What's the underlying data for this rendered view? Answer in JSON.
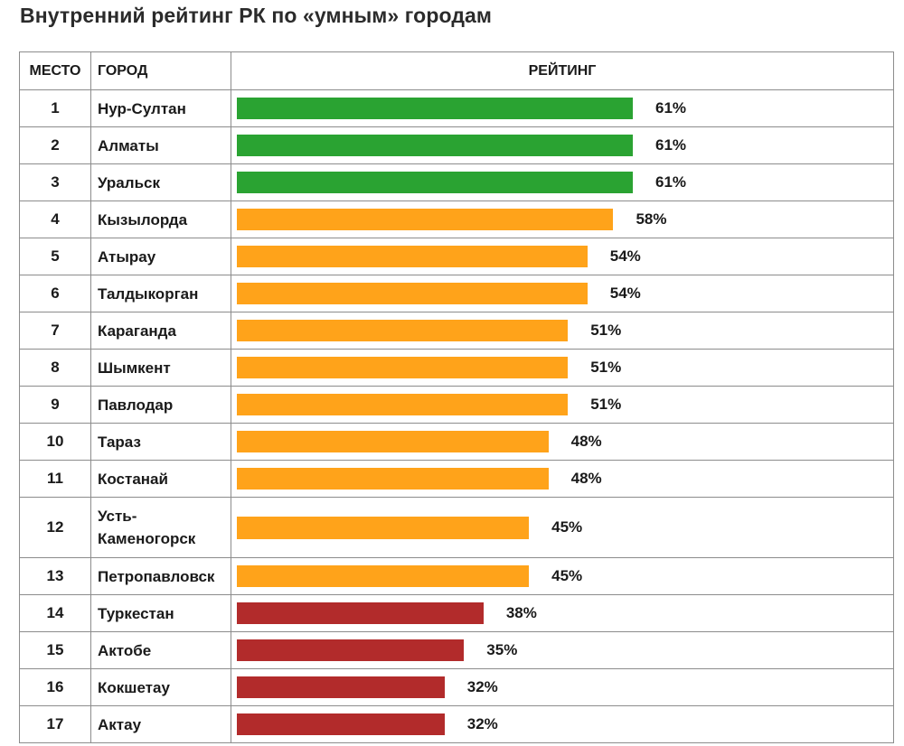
{
  "title": "Внутренний рейтинг РК по «умным» городам",
  "headers": {
    "place": "МЕСТО",
    "city": "ГОРОД",
    "rating": "РЕЙТИНГ"
  },
  "colors": {
    "high": "#2aa332",
    "mid": "#ffa31a",
    "low": "#b22b2b"
  },
  "chart_data": {
    "type": "bar",
    "orientation": "horizontal",
    "title": "Внутренний рейтинг РК по «умным» городам",
    "xlabel": "РЕЙТИНГ",
    "ylabel": "ГОРОД",
    "unit": "%",
    "xlim": [
      0,
      70
    ],
    "rows": [
      {
        "place": "1",
        "city": "Нур-Султан",
        "value": 61,
        "label": "61%",
        "level": "high"
      },
      {
        "place": "2",
        "city": "Алматы",
        "value": 61,
        "label": "61%",
        "level": "high"
      },
      {
        "place": "3",
        "city": "Уральск",
        "value": 61,
        "label": "61%",
        "level": "high"
      },
      {
        "place": "4",
        "city": "Кызылорда",
        "value": 58,
        "label": "58%",
        "level": "mid"
      },
      {
        "place": "5",
        "city": "Атырау",
        "value": 54,
        "label": "54%",
        "level": "mid"
      },
      {
        "place": "6",
        "city": "Талдыкорган",
        "value": 54,
        "label": "54%",
        "level": "mid"
      },
      {
        "place": "7",
        "city": "Караганда",
        "value": 51,
        "label": "51%",
        "level": "mid"
      },
      {
        "place": "8",
        "city": "Шымкент",
        "value": 51,
        "label": "51%",
        "level": "mid"
      },
      {
        "place": "9",
        "city": "Павлодар",
        "value": 51,
        "label": "51%",
        "level": "mid"
      },
      {
        "place": "10",
        "city": "Тараз",
        "value": 48,
        "label": "48%",
        "level": "mid"
      },
      {
        "place": "11",
        "city": "Костанай",
        "value": 48,
        "label": "48%",
        "level": "mid"
      },
      {
        "place": "12",
        "city": "Усть-Каменогорск",
        "city_lines": [
          "Усть-",
          "Каменогорск"
        ],
        "value": 45,
        "label": "45%",
        "level": "mid"
      },
      {
        "place": "13",
        "city": "Петропавловск",
        "value": 45,
        "label": "45%",
        "level": "mid"
      },
      {
        "place": "14",
        "city": "Туркестан",
        "value": 38,
        "label": "38%",
        "level": "low"
      },
      {
        "place": "15",
        "city": "Актобе",
        "value": 35,
        "label": "35%",
        "level": "low"
      },
      {
        "place": "16",
        "city": "Кокшетау",
        "value": 32,
        "label": "32%",
        "level": "low"
      },
      {
        "place": "17",
        "city": "Актау",
        "value": 32,
        "label": "32%",
        "level": "low"
      }
    ]
  }
}
